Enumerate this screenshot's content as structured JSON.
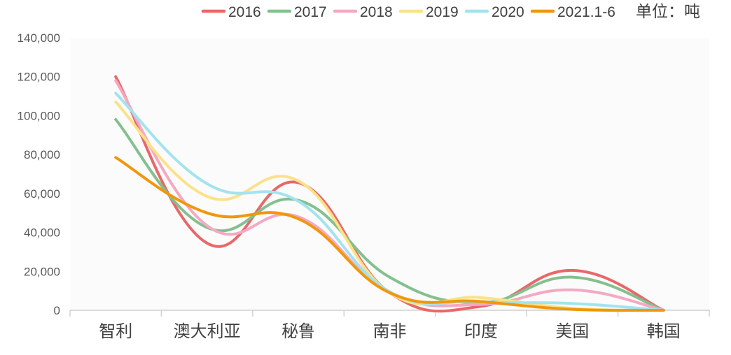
{
  "chart_data": {
    "type": "line",
    "smooth": true,
    "title": "",
    "xlabel": "",
    "ylabel": "",
    "unit": "单位：吨",
    "ylim": [
      0,
      140000
    ],
    "ytick_step": 20000,
    "ytick_labels": [
      "0",
      "20,000",
      "40,000",
      "60,000",
      "80,000",
      "100,000",
      "120,000",
      "140,000"
    ],
    "grid": false,
    "legend_position": "top-right",
    "categories": [
      "智利",
      "澳大利亚",
      "秘鲁",
      "南非",
      "印度",
      "美国",
      "韩国"
    ],
    "series": [
      {
        "name": "2016",
        "color": "#E8686A",
        "values": [
          120000,
          34500,
          65500,
          9000,
          2000,
          20500,
          0
        ]
      },
      {
        "name": "2017",
        "color": "#84C08E",
        "values": [
          98000,
          42500,
          56500,
          17000,
          4000,
          17000,
          0
        ]
      },
      {
        "name": "2018",
        "color": "#F4A9C3",
        "values": [
          118000,
          43500,
          48000,
          9000,
          3000,
          10500,
          0
        ]
      },
      {
        "name": "2019",
        "color": "#FBE28A",
        "values": [
          107000,
          58500,
          66500,
          9000,
          6500,
          1000,
          0
        ]
      },
      {
        "name": "2020",
        "color": "#A3E3EE",
        "values": [
          111500,
          65000,
          56000,
          9500,
          4500,
          3500,
          0
        ]
      },
      {
        "name": "2021.1-6",
        "color": "#F0970C",
        "values": [
          78500,
          50000,
          47000,
          9000,
          4500,
          500,
          0
        ]
      }
    ]
  }
}
